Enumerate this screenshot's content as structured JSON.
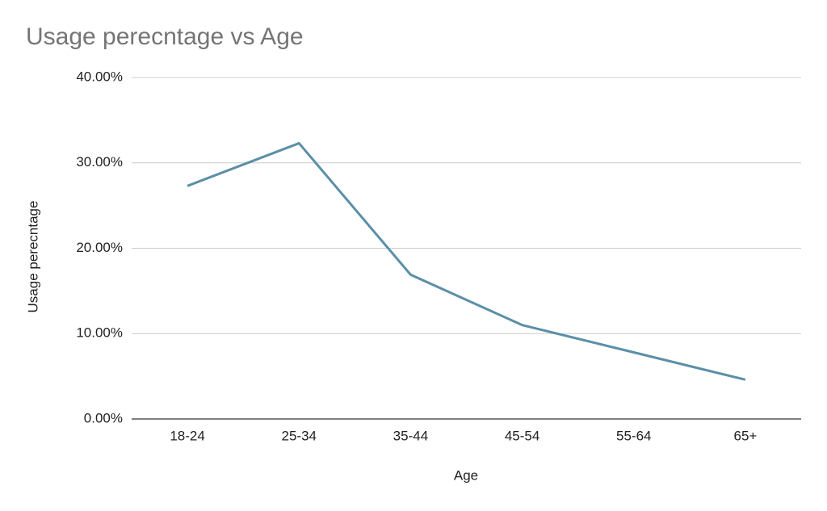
{
  "chart_data": {
    "type": "line",
    "title": "Usage perecntage vs Age",
    "x_label": "Age",
    "y_label": "Usage perecntage",
    "categories": [
      "18-24",
      "25-34",
      "35-44",
      "45-54",
      "55-64",
      "65+"
    ],
    "series": [
      {
        "name": "Usage perecntage",
        "color": "#5b8fa8",
        "values": [
          27.3,
          32.3,
          16.9,
          11.0,
          7.8,
          4.6
        ]
      }
    ],
    "ylim": [
      0,
      40
    ],
    "yticks": [
      {
        "value": 0,
        "label": "0.00%"
      },
      {
        "value": 10,
        "label": "10.00%"
      },
      {
        "value": 20,
        "label": "20.00%"
      },
      {
        "value": 30,
        "label": "30.00%"
      },
      {
        "value": 40,
        "label": "40.00%"
      }
    ],
    "grid": true
  }
}
